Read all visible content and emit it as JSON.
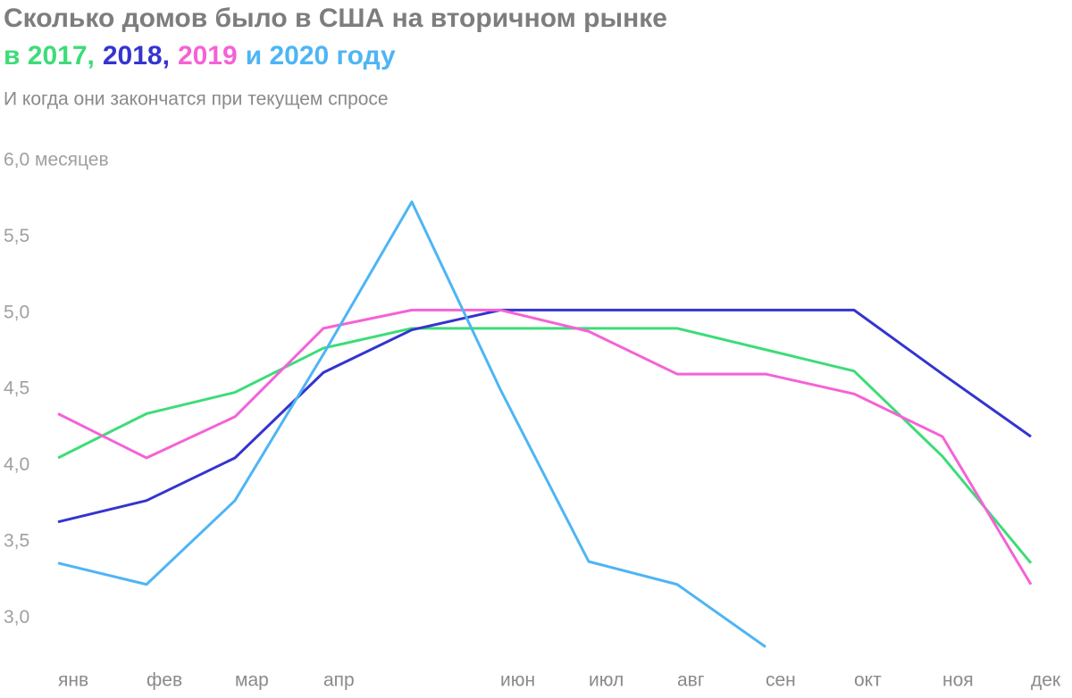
{
  "chart_data": {
    "type": "line",
    "title": "Сколько домов было в США на вторичном рынке",
    "subtitle": "И когда они закончатся при текущем спросе",
    "categories": [
      "янв",
      "фев",
      "мар",
      "апр",
      null,
      "июн",
      "июл",
      "авг",
      "сен",
      "окт",
      "ноя",
      "дек"
    ],
    "series": [
      {
        "name": "в 2017,",
        "color": "#3ddc78",
        "values": [
          4.05,
          4.34,
          4.48,
          4.77,
          4.9,
          4.9,
          4.9,
          4.9,
          4.76,
          4.62,
          4.06,
          3.36
        ]
      },
      {
        "name": "2018,",
        "color": "#3434cf",
        "values": [
          3.63,
          3.77,
          4.05,
          4.61,
          4.89,
          5.02,
          5.02,
          5.02,
          5.02,
          5.02,
          4.6,
          4.19
        ]
      },
      {
        "name": "2019",
        "color": "#f562d6",
        "values": [
          4.34,
          4.05,
          4.32,
          4.9,
          5.02,
          5.02,
          4.88,
          4.6,
          4.6,
          4.47,
          4.19,
          3.22
        ]
      },
      {
        "name": "и 2020 году",
        "color": "#4db5f5",
        "values": [
          3.36,
          3.22,
          3.77,
          4.73,
          5.73,
          4.5,
          3.37,
          3.22,
          2.81,
          null,
          null,
          null
        ]
      }
    ],
    "ylim": [
      2.75,
      6.0
    ],
    "yticks": [
      {
        "value": 3.0,
        "label": "3,0"
      },
      {
        "value": 3.5,
        "label": "3,5"
      },
      {
        "value": 4.0,
        "label": "4,0"
      },
      {
        "value": 4.5,
        "label": "4,5"
      },
      {
        "value": 5.0,
        "label": "5,0"
      },
      {
        "value": 5.5,
        "label": "5,5"
      },
      {
        "value": 6.0,
        "label": "6,0 месяцев"
      }
    ],
    "grid": false
  }
}
